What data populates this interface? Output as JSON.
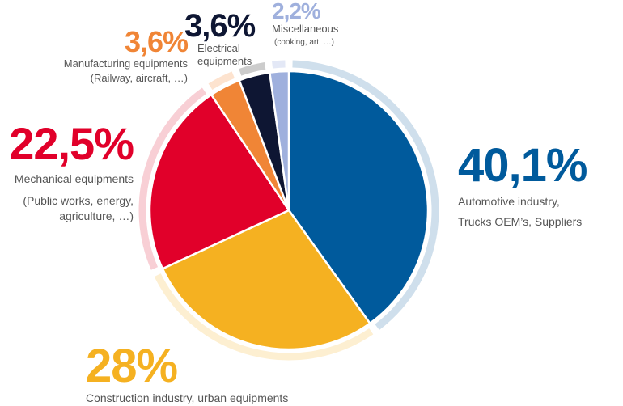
{
  "chart_data": {
    "type": "pie",
    "slices": [
      {
        "pct_label": "40,1%",
        "value": 40.1,
        "label": "Automotive industry,",
        "sublabel": "Trucks OEM’s, Suppliers",
        "color": "#005a9c",
        "ring_color": "#cfdfec"
      },
      {
        "pct_label": "28%",
        "value": 28,
        "label": "Construction industry, urban equipments",
        "color": "#f5b121",
        "ring_color": "#fdefd1"
      },
      {
        "pct_label": "22,5%",
        "value": 22.5,
        "label": "Mechanical equipments",
        "sublabel": "(Public works, energy, agriculture, …)",
        "color": "#e1002a",
        "ring_color": "#f8cfd5"
      },
      {
        "pct_label": "3,6%",
        "value": 3.6,
        "label": "Manufacturing equipments",
        "sublabel": "(Railway, aircraft, …)",
        "color": "#f08536",
        "ring_color": "#fde3cf"
      },
      {
        "pct_label": "3,6%",
        "value": 3.6,
        "label": "Electrical equipments",
        "color": "#0e1633",
        "ring_color": "#cccccc"
      },
      {
        "pct_label": "2,2%",
        "value": 2.2,
        "label": "Miscellaneous",
        "sublabel": "(cooking, art, …)",
        "color": "#9fb0dd",
        "ring_color": "#e3e8f6"
      }
    ]
  }
}
